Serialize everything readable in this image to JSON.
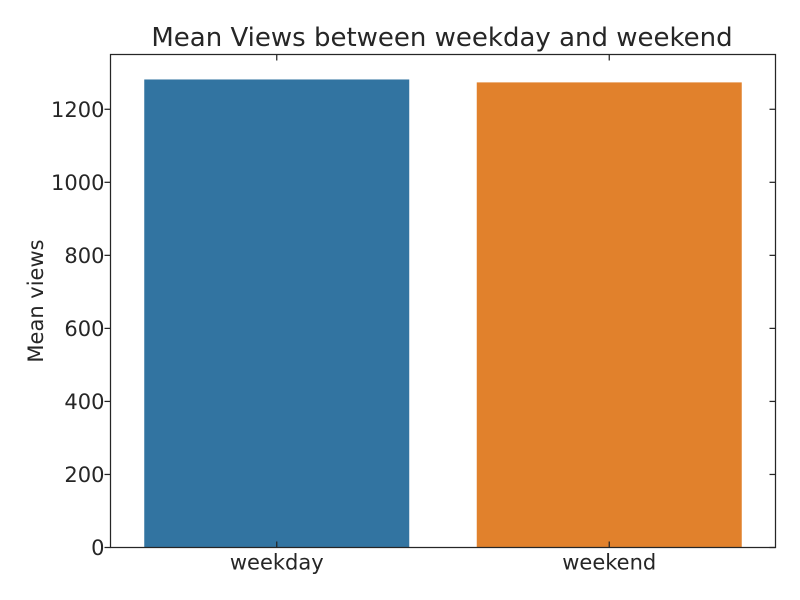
{
  "chart_data": {
    "type": "bar",
    "title": "Mean Views between weekday and weekend",
    "xlabel": "",
    "ylabel": "Mean views",
    "categories": [
      "weekday",
      "weekend"
    ],
    "values": [
      1283,
      1275
    ],
    "colors": [
      "#3274a1",
      "#e1812c"
    ],
    "ylim": [
      0,
      1350
    ],
    "yticks": [
      0,
      200,
      400,
      600,
      800,
      1000,
      1200
    ],
    "grid": false,
    "legend": "none"
  }
}
